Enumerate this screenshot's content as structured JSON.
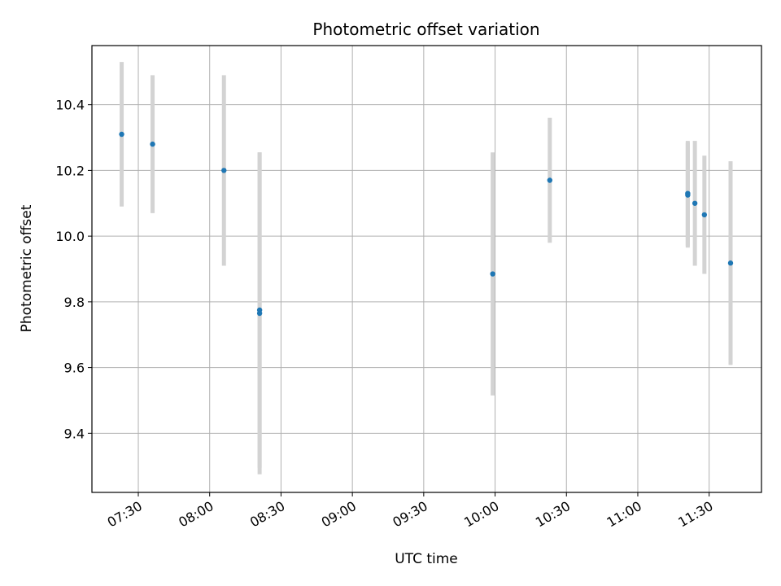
{
  "chart_data": {
    "type": "scatter",
    "title": "Photometric offset variation",
    "xlabel": "UTC time",
    "ylabel": "Photometric offset",
    "x_ticks": [
      "07:30",
      "08:00",
      "08:30",
      "09:00",
      "09:30",
      "10:00",
      "10:30",
      "11:00",
      "11:30"
    ],
    "x_tick_minutes": [
      450,
      480,
      510,
      540,
      570,
      600,
      630,
      660,
      690
    ],
    "xlim_minutes": [
      430.5,
      712
    ],
    "y_ticks": [
      "9.4",
      "9.6",
      "9.8",
      "10.0",
      "10.2",
      "10.4"
    ],
    "y_tick_values": [
      9.4,
      9.6,
      9.8,
      10.0,
      10.2,
      10.4
    ],
    "ylim": [
      9.22,
      10.58
    ],
    "grid": true,
    "marker_color": "#1f77b4",
    "errorbar_color": "#d3d3d3",
    "points": [
      {
        "t": "07:23",
        "y": 10.31,
        "err": 0.22
      },
      {
        "t": "07:36",
        "y": 10.28,
        "err": 0.21
      },
      {
        "t": "08:06",
        "y": 10.2,
        "err": 0.29
      },
      {
        "t": "08:21",
        "y": 9.775,
        "err": 0.48
      },
      {
        "t": "08:21",
        "y": 9.765,
        "err": 0.49
      },
      {
        "t": "09:59",
        "y": 9.885,
        "err": 0.37
      },
      {
        "t": "10:23",
        "y": 10.17,
        "err": 0.19
      },
      {
        "t": "11:21",
        "y": 10.13,
        "err": 0.16
      },
      {
        "t": "11:21",
        "y": 10.125,
        "err": 0.16
      },
      {
        "t": "11:24",
        "y": 10.1,
        "err": 0.19
      },
      {
        "t": "11:28",
        "y": 10.065,
        "err": 0.18
      },
      {
        "t": "11:39",
        "y": 9.918,
        "err": 0.31
      }
    ]
  }
}
